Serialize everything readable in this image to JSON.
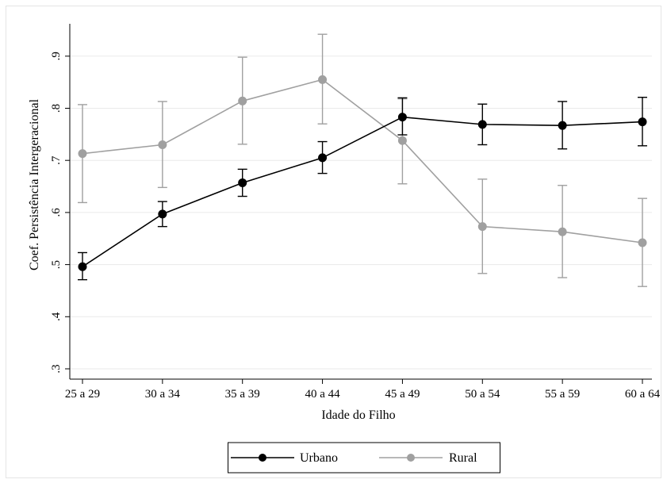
{
  "chart_data": {
    "type": "line",
    "title": "",
    "xlabel": "Idade do Filho",
    "ylabel": "Coef. Persistência Intergeracional",
    "categories": [
      "25 a 29",
      "30 a 34",
      "35 a 39",
      "40 a 44",
      "45 a 49",
      "50 a 54",
      "55 a 59",
      "60 a 64"
    ],
    "ylim": [
      0.3,
      0.95
    ],
    "yticks": [
      0.3,
      0.4,
      0.5,
      0.6,
      0.7,
      0.8,
      0.9
    ],
    "ytick_labels": [
      ".3",
      ".4",
      ".5",
      ".6",
      ".7",
      ".8",
      ".9"
    ],
    "grid": true,
    "legend_position": "bottom",
    "series": [
      {
        "name": "Urbano",
        "color": "#000000",
        "values": [
          0.496,
          0.597,
          0.657,
          0.705,
          0.783,
          0.769,
          0.767,
          0.774
        ],
        "ci_lower": [
          0.471,
          0.573,
          0.631,
          0.675,
          0.749,
          0.73,
          0.722,
          0.728
        ],
        "ci_upper": [
          0.523,
          0.621,
          0.683,
          0.736,
          0.82,
          0.808,
          0.813,
          0.821
        ]
      },
      {
        "name": "Rural",
        "color": "#a0a0a0",
        "values": [
          0.713,
          0.73,
          0.814,
          0.855,
          0.738,
          0.573,
          0.563,
          0.542
        ],
        "ci_lower": [
          0.619,
          0.648,
          0.731,
          0.77,
          0.655,
          0.483,
          0.475,
          0.458
        ],
        "ci_upper": [
          0.807,
          0.813,
          0.898,
          0.942,
          0.818,
          0.664,
          0.652,
          0.627
        ]
      }
    ]
  }
}
